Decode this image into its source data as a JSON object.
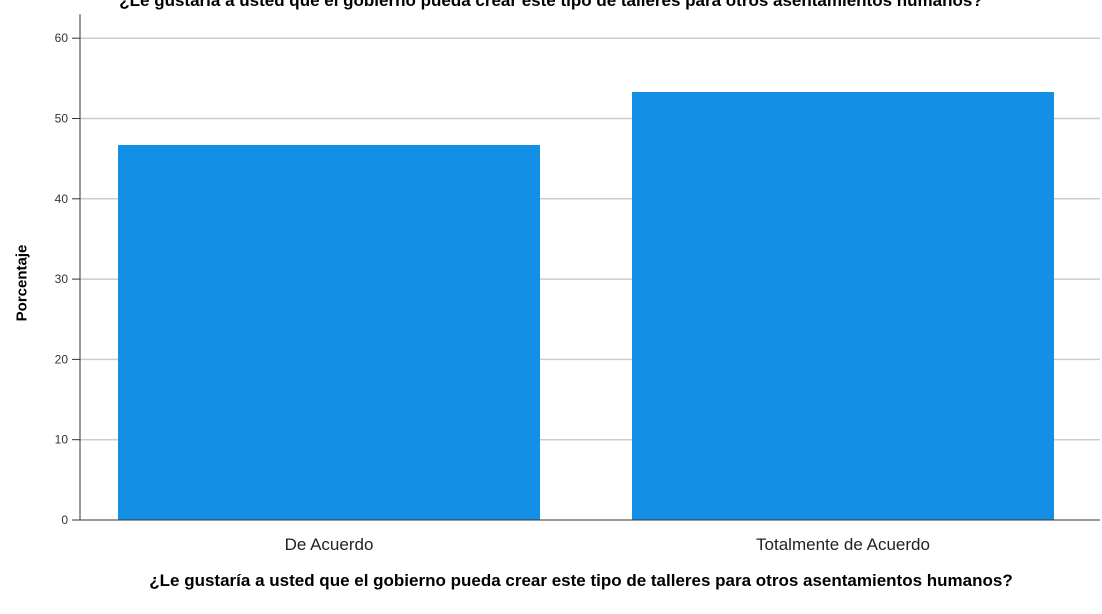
{
  "chart_data": {
    "type": "bar",
    "title": "¿Le gustaría a usted que el gobierno pueda crear este tipo de talleres para otros asentamientos humanos?",
    "xlabel": "¿Le gustaría a usted que el gobierno pueda crear este tipo de talleres para otros asentamientos humanos?",
    "ylabel": "Porcentaje",
    "categories": [
      "De Acuerdo",
      "Totalmente de Acuerdo"
    ],
    "values": [
      46.7,
      53.3
    ],
    "ylim": [
      0,
      63
    ],
    "yticks": [
      0,
      10,
      20,
      30,
      40,
      50,
      60
    ],
    "grid": true,
    "colors": {
      "bar": "#1390e6",
      "grid": "#cccccc",
      "axis": "#333333"
    }
  }
}
